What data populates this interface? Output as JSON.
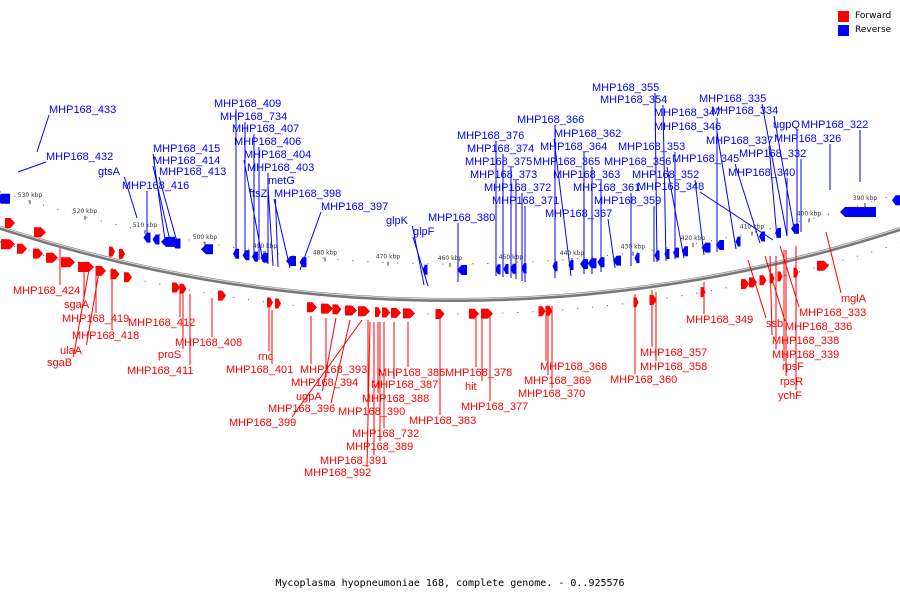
{
  "caption": "Mycoplasma hyopneumoniae 168, complete genome. - 0..925576",
  "legend": [
    {
      "label": "Forward",
      "color": "#ff0000"
    },
    {
      "label": "Reverse",
      "color": "#0000ff"
    }
  ],
  "colors": {
    "forward": "#ff0000",
    "reverse": "#0000ff",
    "backbone": "#999999"
  },
  "kbp_ticks": [
    "530 kbp",
    "520 kbp",
    "510 kbp",
    "500 kbp",
    "490 kbp",
    "480 kbp",
    "470 kbp",
    "460 kbp",
    "450 kbp",
    "440 kbp",
    "430 kbp",
    "420 kbp",
    "410 kbp",
    "400 kbp",
    "390 kbp"
  ],
  "reverse_labels": [
    "MHP168_433",
    "MHP168_432",
    "gtsA",
    "MHP168_416",
    "MHP168_415",
    "MHP168_414",
    "MHP168_413",
    "MHP168_409",
    "MHP168_734",
    "MHP168_407",
    "MHP168_406",
    "MHP168_404",
    "MHP168_403",
    "metG",
    "ftsZ",
    "MHP168_398",
    "MHP168_397",
    "glpK",
    "glpF",
    "MHP168_380",
    "MHP168_376",
    "MHP168_374",
    "MHP168_375",
    "MHP168_373",
    "MHP168_372",
    "MHP168_371",
    "MHP168_366",
    "MHP168_362",
    "MHP168_364",
    "MHP168_365",
    "MHP168_363",
    "MHP168_367",
    "MHP168_361",
    "MHP168_359",
    "MHP168_355",
    "MHP168_354",
    "MHP168_353",
    "MHP168_356",
    "MHP168_352",
    "MHP168_347",
    "MHP168_346",
    "MHP168_345",
    "MHP168_348",
    "MHP168_335",
    "MHP168_334",
    "MHP168_337",
    "MHP168_332",
    "MHP168_340",
    "ugpQ",
    "MHP168_322",
    "MHP168_326"
  ],
  "forward_labels": [
    "MHP168_424",
    "sgaA",
    "MHP168_419",
    "MHP168_418",
    "ulaA",
    "sgaB",
    "MHP168_412",
    "proS",
    "MHP168_411",
    "MHP168_408",
    "rnc",
    "MHP168_401",
    "MHP168_393",
    "MHP168_394",
    "ugpA",
    "MHP168_396",
    "MHP168_399",
    "MHP168_390",
    "MHP168_388",
    "MHP168_387",
    "MHP168_386",
    "MHP168_732",
    "MHP168_389",
    "MHP168_391",
    "MHP168_392",
    "MHP168_383",
    "MHP168_378",
    "hit",
    "MHP168_377",
    "MHP168_368",
    "MHP168_369",
    "MHP168_370",
    "MHP168_360",
    "MHP168_357",
    "MHP168_358",
    "MHP168_349",
    "ssb",
    "MHP168_336",
    "MHP168_338",
    "MHP168_339",
    "rpsF",
    "rpsR",
    "ychF",
    "MHP168_333",
    "mglA"
  ]
}
